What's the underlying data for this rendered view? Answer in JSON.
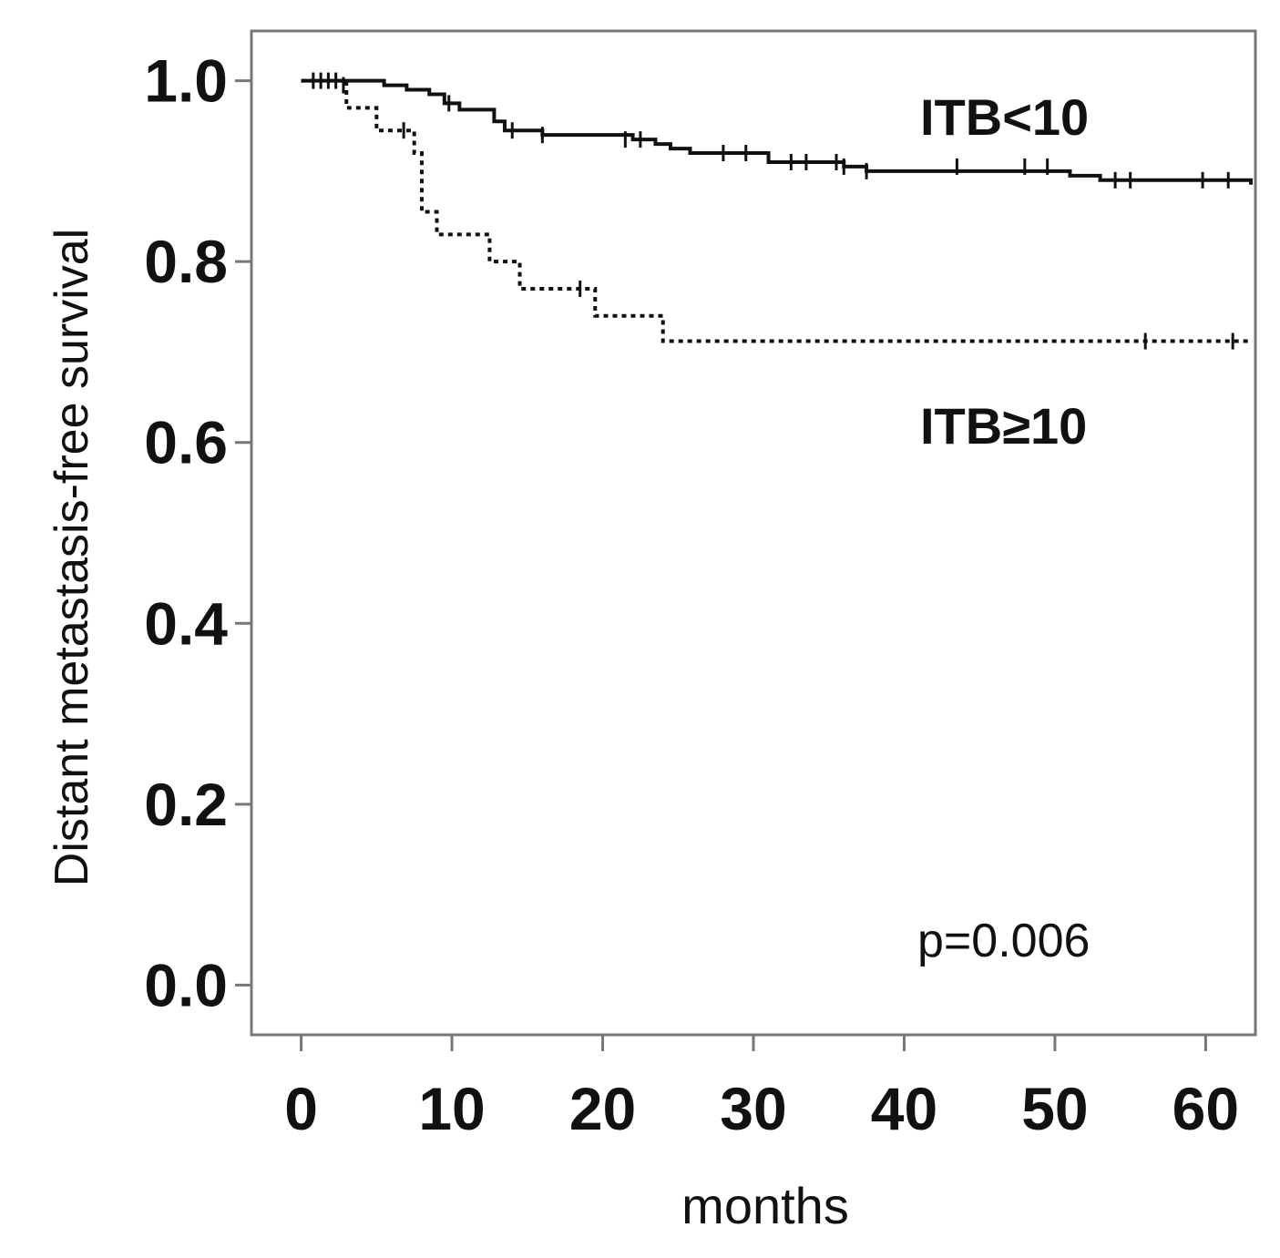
{
  "chart_data": {
    "type": "line",
    "title": "",
    "xlabel": "months",
    "ylabel": "Distant metastasis-free  survival",
    "xlim": [
      -3.3,
      63.3
    ],
    "ylim": [
      -0.055,
      1.055
    ],
    "xticks": [
      0,
      10,
      20,
      30,
      40,
      50,
      60
    ],
    "yticks": [
      "0.0",
      "0.2",
      "0.4",
      "0.6",
      "0.8",
      "1.0"
    ],
    "grid": false,
    "annotation": "p=0.006",
    "series": [
      {
        "name": "ITB<10",
        "style": "solid",
        "color": "#111111",
        "steps": [
          [
            0,
            1.0
          ],
          [
            5.5,
            0.995
          ],
          [
            7,
            0.99
          ],
          [
            8.5,
            0.985
          ],
          [
            9.5,
            0.975
          ],
          [
            10.5,
            0.968
          ],
          [
            12.8,
            0.955
          ],
          [
            13.5,
            0.945
          ],
          [
            16,
            0.94
          ],
          [
            22,
            0.935
          ],
          [
            23.5,
            0.93
          ],
          [
            24.5,
            0.925
          ],
          [
            25.8,
            0.92
          ],
          [
            31,
            0.91
          ],
          [
            36,
            0.905
          ],
          [
            37.5,
            0.9
          ],
          [
            51,
            0.895
          ],
          [
            53,
            0.89
          ],
          [
            63,
            0.885
          ]
        ],
        "censored": [
          [
            0.8,
            1.0
          ],
          [
            1.3,
            1.0
          ],
          [
            1.8,
            1.0
          ],
          [
            2.3,
            1.0
          ],
          [
            2.8,
            0.995
          ],
          [
            9.8,
            0.975
          ],
          [
            14,
            0.945
          ],
          [
            16,
            0.94
          ],
          [
            21.5,
            0.935
          ],
          [
            22.5,
            0.935
          ],
          [
            28,
            0.92
          ],
          [
            29.5,
            0.92
          ],
          [
            32.5,
            0.91
          ],
          [
            33.5,
            0.91
          ],
          [
            35.5,
            0.91
          ],
          [
            36,
            0.905
          ],
          [
            37.5,
            0.9
          ],
          [
            43.5,
            0.905
          ],
          [
            48,
            0.905
          ],
          [
            49.5,
            0.905
          ],
          [
            54,
            0.89
          ],
          [
            55,
            0.89
          ],
          [
            59.8,
            0.89
          ],
          [
            61.5,
            0.89
          ]
        ]
      },
      {
        "name": "ITB≥10",
        "style": "dotted",
        "color": "#111111",
        "steps": [
          [
            0,
            1.0
          ],
          [
            3,
            0.97
          ],
          [
            5,
            0.945
          ],
          [
            7.5,
            0.92
          ],
          [
            8,
            0.855
          ],
          [
            9,
            0.83
          ],
          [
            12.5,
            0.8
          ],
          [
            14.5,
            0.77
          ],
          [
            19.5,
            0.74
          ],
          [
            24,
            0.712
          ],
          [
            63,
            0.712
          ]
        ],
        "censored": [
          [
            6.8,
            0.945
          ],
          [
            18.5,
            0.77
          ],
          [
            56,
            0.712
          ],
          [
            61.8,
            0.712
          ]
        ]
      }
    ],
    "series_labels": [
      "ITB<10",
      "ITB≥10"
    ]
  }
}
